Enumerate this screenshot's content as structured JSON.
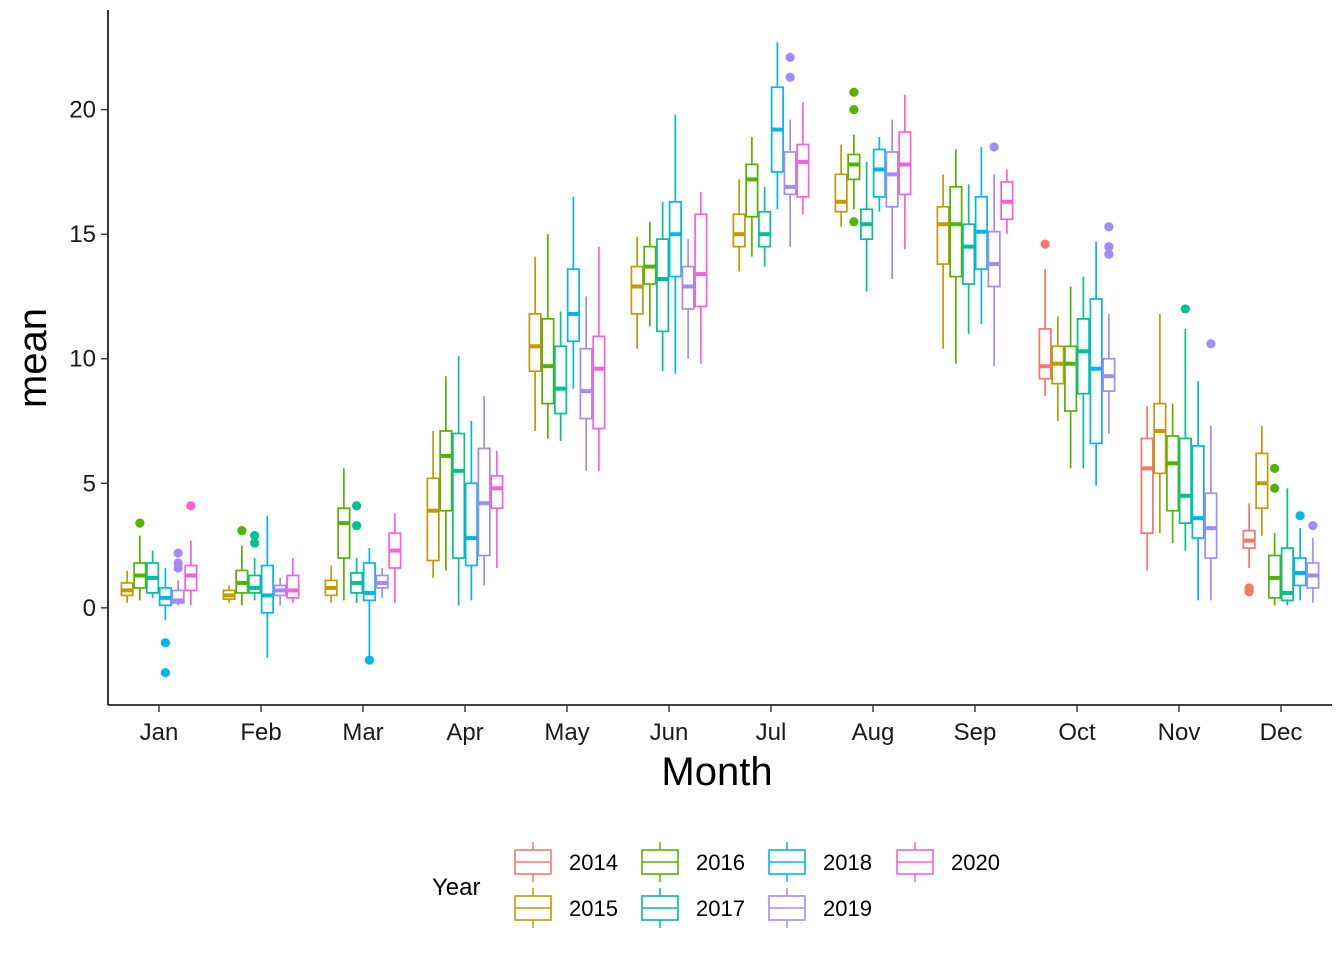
{
  "chart_data": {
    "type": "boxplot",
    "xlabel": "Month",
    "ylabel": "mean",
    "ylim": [
      -3.9,
      24
    ],
    "y_ticks": [
      0,
      5,
      10,
      15,
      20
    ],
    "grid": false,
    "legend": {
      "title": "Year",
      "position": "bottom",
      "entries": [
        "2014",
        "2015",
        "2016",
        "2017",
        "2018",
        "2019",
        "2020"
      ]
    },
    "categories": [
      "Jan",
      "Feb",
      "Mar",
      "Apr",
      "May",
      "Jun",
      "Jul",
      "Aug",
      "Sep",
      "Oct",
      "Nov",
      "Dec"
    ],
    "series": [
      {
        "name": "2014",
        "color": "#F8766D",
        "boxes": [
          null,
          null,
          null,
          null,
          null,
          null,
          null,
          null,
          null,
          {
            "min": 8.5,
            "q1": 9.2,
            "median": 9.7,
            "q3": 11.2,
            "max": 13.6,
            "outliers": [
              14.6
            ]
          },
          {
            "min": 1.5,
            "q1": 3.0,
            "median": 5.6,
            "q3": 6.8,
            "max": 8.1,
            "outliers": []
          },
          {
            "min": 1.6,
            "q1": 2.4,
            "median": 2.7,
            "q3": 3.1,
            "max": 4.2,
            "outliers": [
              0.8,
              0.65
            ]
          }
        ]
      },
      {
        "name": "2015",
        "color": "#C49A00",
        "boxes": [
          {
            "min": 0.2,
            "q1": 0.5,
            "median": 0.7,
            "q3": 1.0,
            "max": 1.5,
            "outliers": []
          },
          {
            "min": 0.2,
            "q1": 0.35,
            "median": 0.5,
            "q3": 0.7,
            "max": 0.9,
            "outliers": []
          },
          {
            "min": 0.2,
            "q1": 0.5,
            "median": 0.8,
            "q3": 1.1,
            "max": 1.7,
            "outliers": []
          },
          {
            "min": 1.2,
            "q1": 1.9,
            "median": 3.9,
            "q3": 5.2,
            "max": 7.1,
            "outliers": []
          },
          {
            "min": 7.1,
            "q1": 9.5,
            "median": 10.5,
            "q3": 11.8,
            "max": 14.1,
            "outliers": []
          },
          {
            "min": 10.4,
            "q1": 11.8,
            "median": 12.9,
            "q3": 13.7,
            "max": 14.9,
            "outliers": []
          },
          {
            "min": 13.5,
            "q1": 14.5,
            "median": 15.0,
            "q3": 15.8,
            "max": 17.2,
            "outliers": []
          },
          {
            "min": 15.3,
            "q1": 15.9,
            "median": 16.3,
            "q3": 17.4,
            "max": 18.6,
            "outliers": []
          },
          {
            "min": 10.4,
            "q1": 13.8,
            "median": 15.4,
            "q3": 16.1,
            "max": 17.4,
            "outliers": []
          },
          {
            "min": 7.5,
            "q1": 9.0,
            "median": 9.8,
            "q3": 10.5,
            "max": 11.7,
            "outliers": []
          },
          {
            "min": 3.0,
            "q1": 5.4,
            "median": 7.1,
            "q3": 8.2,
            "max": 11.8,
            "outliers": []
          },
          {
            "min": 2.9,
            "q1": 4.0,
            "median": 5.0,
            "q3": 6.2,
            "max": 7.3,
            "outliers": []
          }
        ]
      },
      {
        "name": "2016",
        "color": "#53B400",
        "boxes": [
          {
            "min": 0.3,
            "q1": 0.8,
            "median": 1.3,
            "q3": 1.8,
            "max": 2.9,
            "outliers": [
              3.4
            ]
          },
          {
            "min": 0.1,
            "q1": 0.6,
            "median": 1.0,
            "q3": 1.5,
            "max": 2.5,
            "outliers": [
              3.1
            ]
          },
          {
            "min": 0.3,
            "q1": 2.0,
            "median": 3.4,
            "q3": 4.0,
            "max": 5.6,
            "outliers": []
          },
          {
            "min": 1.5,
            "q1": 3.9,
            "median": 6.1,
            "q3": 7.1,
            "max": 9.3,
            "outliers": []
          },
          {
            "min": 6.8,
            "q1": 8.2,
            "median": 9.7,
            "q3": 11.6,
            "max": 15.0,
            "outliers": []
          },
          {
            "min": 11.3,
            "q1": 13.0,
            "median": 13.7,
            "q3": 14.5,
            "max": 15.5,
            "outliers": []
          },
          {
            "min": 14.1,
            "q1": 15.7,
            "median": 17.2,
            "q3": 17.8,
            "max": 18.9,
            "outliers": []
          },
          {
            "min": 16.0,
            "q1": 17.2,
            "median": 17.8,
            "q3": 18.2,
            "max": 19.0,
            "outliers": [
              20.7,
              20.0,
              15.5
            ]
          },
          {
            "min": 9.8,
            "q1": 13.3,
            "median": 15.4,
            "q3": 16.9,
            "max": 18.4,
            "outliers": []
          },
          {
            "min": 5.6,
            "q1": 7.9,
            "median": 9.8,
            "q3": 10.5,
            "max": 12.9,
            "outliers": []
          },
          {
            "min": 2.6,
            "q1": 3.9,
            "median": 5.8,
            "q3": 6.9,
            "max": 8.2,
            "outliers": []
          },
          {
            "min": 0.1,
            "q1": 0.4,
            "median": 1.2,
            "q3": 2.1,
            "max": 3.0,
            "outliers": [
              5.6,
              4.8
            ]
          }
        ]
      },
      {
        "name": "2017",
        "color": "#00C094",
        "boxes": [
          {
            "min": 0.4,
            "q1": 0.6,
            "median": 1.2,
            "q3": 1.8,
            "max": 2.3,
            "outliers": []
          },
          {
            "min": 0.3,
            "q1": 0.6,
            "median": 0.8,
            "q3": 1.3,
            "max": 2.0,
            "outliers": [
              2.9,
              2.6
            ]
          },
          {
            "min": 0.2,
            "q1": 0.6,
            "median": 1.0,
            "q3": 1.4,
            "max": 2.0,
            "outliers": [
              4.1,
              3.3
            ]
          },
          {
            "min": 0.1,
            "q1": 2.0,
            "median": 5.5,
            "q3": 7.0,
            "max": 10.1,
            "outliers": []
          },
          {
            "min": 6.7,
            "q1": 7.8,
            "median": 8.8,
            "q3": 10.5,
            "max": 11.9,
            "outliers": []
          },
          {
            "min": 9.5,
            "q1": 11.1,
            "median": 13.2,
            "q3": 14.8,
            "max": 16.3,
            "outliers": []
          },
          {
            "min": 13.7,
            "q1": 14.5,
            "median": 15.0,
            "q3": 15.9,
            "max": 16.9,
            "outliers": []
          },
          {
            "min": 12.7,
            "q1": 14.8,
            "median": 15.4,
            "q3": 16.0,
            "max": 17.9,
            "outliers": []
          },
          {
            "min": 11.0,
            "q1": 13.0,
            "median": 14.5,
            "q3": 15.4,
            "max": 17.0,
            "outliers": []
          },
          {
            "min": 5.6,
            "q1": 8.6,
            "median": 10.3,
            "q3": 11.6,
            "max": 13.3,
            "outliers": []
          },
          {
            "min": 2.3,
            "q1": 3.4,
            "median": 4.5,
            "q3": 6.8,
            "max": 11.2,
            "outliers": [
              12.0
            ]
          },
          {
            "min": 0.1,
            "q1": 0.3,
            "median": 0.6,
            "q3": 2.4,
            "max": 4.8,
            "outliers": []
          }
        ]
      },
      {
        "name": "2018",
        "color": "#00B6EB",
        "boxes": [
          {
            "min": -0.5,
            "q1": 0.1,
            "median": 0.4,
            "q3": 0.8,
            "max": 1.6,
            "outliers": [
              -1.4,
              -2.6
            ]
          },
          {
            "min": -2.0,
            "q1": -0.2,
            "median": 0.5,
            "q3": 1.7,
            "max": 3.7,
            "outliers": []
          },
          {
            "min": -2.0,
            "q1": 0.3,
            "median": 0.6,
            "q3": 1.8,
            "max": 2.4,
            "outliers": [
              -2.1
            ]
          },
          {
            "min": 0.3,
            "q1": 1.7,
            "median": 2.8,
            "q3": 5.0,
            "max": 7.5,
            "outliers": []
          },
          {
            "min": 8.8,
            "q1": 10.7,
            "median": 11.8,
            "q3": 13.6,
            "max": 16.5,
            "outliers": []
          },
          {
            "min": 9.4,
            "q1": 13.3,
            "median": 15.0,
            "q3": 16.3,
            "max": 19.8,
            "outliers": []
          },
          {
            "min": 16.0,
            "q1": 17.5,
            "median": 19.2,
            "q3": 20.9,
            "max": 22.7,
            "outliers": []
          },
          {
            "min": 15.9,
            "q1": 16.5,
            "median": 17.6,
            "q3": 18.4,
            "max": 18.9,
            "outliers": []
          },
          {
            "min": 11.4,
            "q1": 13.6,
            "median": 15.1,
            "q3": 16.5,
            "max": 18.5,
            "outliers": []
          },
          {
            "min": 4.9,
            "q1": 6.6,
            "median": 9.6,
            "q3": 12.4,
            "max": 14.7,
            "outliers": []
          },
          {
            "min": 0.3,
            "q1": 2.8,
            "median": 3.6,
            "q3": 6.5,
            "max": 9.1,
            "outliers": []
          },
          {
            "min": 0.3,
            "q1": 0.9,
            "median": 1.4,
            "q3": 2.0,
            "max": 3.2,
            "outliers": [
              3.7
            ]
          }
        ]
      },
      {
        "name": "2019",
        "color": "#A58AFF",
        "boxes": [
          {
            "min": 0.1,
            "q1": 0.2,
            "median": 0.3,
            "q3": 0.7,
            "max": 1.1,
            "outliers": [
              2.2,
              1.8,
              1.6
            ]
          },
          {
            "min": 0.1,
            "q1": 0.5,
            "median": 0.7,
            "q3": 0.9,
            "max": 1.2,
            "outliers": []
          },
          {
            "min": 0.4,
            "q1": 0.8,
            "median": 1.0,
            "q3": 1.3,
            "max": 1.6,
            "outliers": []
          },
          {
            "min": 0.9,
            "q1": 2.1,
            "median": 4.2,
            "q3": 6.4,
            "max": 8.5,
            "outliers": []
          },
          {
            "min": 5.5,
            "q1": 7.6,
            "median": 8.7,
            "q3": 10.4,
            "max": 12.5,
            "outliers": []
          },
          {
            "min": 10.0,
            "q1": 12.0,
            "median": 12.9,
            "q3": 13.7,
            "max": 14.8,
            "outliers": []
          },
          {
            "min": 14.5,
            "q1": 16.6,
            "median": 16.9,
            "q3": 18.3,
            "max": 19.6,
            "outliers": [
              22.1,
              21.3
            ]
          },
          {
            "min": 13.2,
            "q1": 16.1,
            "median": 17.4,
            "q3": 18.3,
            "max": 19.6,
            "outliers": []
          },
          {
            "min": 9.7,
            "q1": 12.9,
            "median": 13.8,
            "q3": 15.1,
            "max": 17.4,
            "outliers": [
              18.5
            ]
          },
          {
            "min": 7.0,
            "q1": 8.7,
            "median": 9.3,
            "q3": 10.0,
            "max": 11.8,
            "outliers": [
              15.3,
              14.5,
              14.2
            ]
          },
          {
            "min": 0.3,
            "q1": 2.0,
            "median": 3.2,
            "q3": 4.6,
            "max": 7.3,
            "outliers": [
              10.6
            ]
          },
          {
            "min": 0.2,
            "q1": 0.8,
            "median": 1.3,
            "q3": 1.8,
            "max": 2.8,
            "outliers": [
              3.3
            ]
          }
        ]
      },
      {
        "name": "2020",
        "color": "#FB61D7",
        "boxes": [
          {
            "min": 0.1,
            "q1": 0.7,
            "median": 1.3,
            "q3": 1.7,
            "max": 2.7,
            "outliers": [
              4.1
            ]
          },
          {
            "min": 0.2,
            "q1": 0.4,
            "median": 0.7,
            "q3": 1.3,
            "max": 2.0,
            "outliers": []
          },
          {
            "min": 0.2,
            "q1": 1.6,
            "median": 2.3,
            "q3": 3.0,
            "max": 3.8,
            "outliers": []
          },
          {
            "min": 1.6,
            "q1": 4.0,
            "median": 4.8,
            "q3": 5.3,
            "max": 6.3,
            "outliers": []
          },
          {
            "min": 5.5,
            "q1": 7.2,
            "median": 9.6,
            "q3": 10.9,
            "max": 14.5,
            "outliers": []
          },
          {
            "min": 9.8,
            "q1": 12.1,
            "median": 13.4,
            "q3": 15.8,
            "max": 16.7,
            "outliers": []
          },
          {
            "min": 15.8,
            "q1": 16.5,
            "median": 17.9,
            "q3": 18.6,
            "max": 20.3,
            "outliers": []
          },
          {
            "min": 14.4,
            "q1": 16.6,
            "median": 17.8,
            "q3": 19.1,
            "max": 20.6,
            "outliers": []
          },
          {
            "min": 15.0,
            "q1": 15.6,
            "median": 16.3,
            "q3": 17.1,
            "max": 17.6,
            "outliers": []
          },
          null,
          null,
          null
        ]
      }
    ]
  }
}
